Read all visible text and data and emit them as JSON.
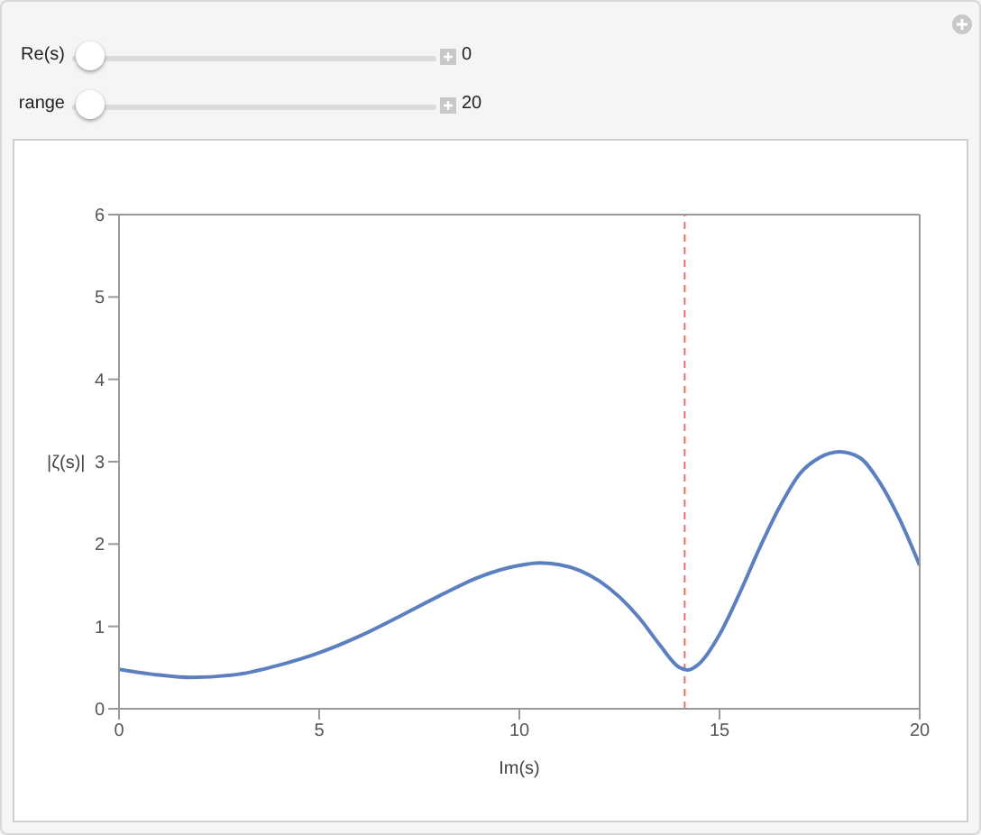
{
  "chart_data": {
    "type": "line",
    "xlabel": "Im(s)",
    "ylabel": "|ζ(s)|",
    "annotations": [
      "Re(s)",
      "0",
      "range",
      "20"
    ],
    "x": [
      0,
      1,
      1.8,
      3,
      4,
      5,
      6,
      7,
      8,
      9,
      10,
      10.5,
      11,
      12,
      13,
      13.5,
      14,
      14.2,
      14.5,
      15,
      15.5,
      16,
      16.5,
      17,
      17.5,
      18,
      18.5,
      19,
      19.5,
      20
    ],
    "series": [
      {
        "color": "#5b7fbf",
        "values": [
          0.48,
          0.41,
          0.38,
          0.42,
          0.53,
          0.68,
          0.88,
          1.12,
          1.37,
          1.6,
          1.74,
          1.77,
          1.75,
          1.55,
          1.1,
          0.78,
          0.5,
          0.47,
          0.55,
          0.9,
          1.4,
          1.95,
          2.45,
          2.85,
          3.05,
          3.12,
          3.05,
          2.75,
          2.3,
          1.74
        ]
      }
    ],
    "xlim": [
      0,
      20
    ],
    "xticks": [
      0,
      5,
      10,
      15,
      20
    ],
    "ylim": [
      0,
      6
    ],
    "yticks": [
      0,
      1,
      2,
      3,
      4,
      5,
      6
    ],
    "ref_lines": [
      {
        "axis": "x",
        "value": 14.13,
        "color": "#e8706a",
        "line_style": "dashed"
      }
    ],
    "grid": false,
    "marker": "none",
    "line_style": "solid"
  }
}
